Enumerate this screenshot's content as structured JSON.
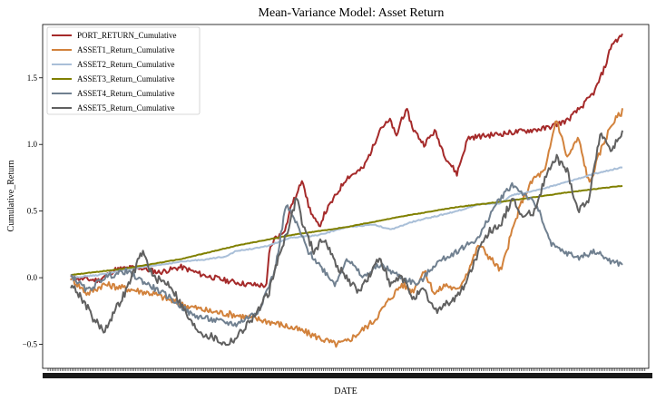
{
  "chart_data": {
    "type": "line",
    "title": "Mean-Variance Model: Asset Return",
    "xlabel": "DATE",
    "ylabel": "Cumulative_Return",
    "ylim": [
      -0.68,
      1.9
    ],
    "yticks": [
      -0.5,
      0.0,
      0.5,
      1.0,
      1.5
    ],
    "ytick_labels": [
      "−0.5",
      "0.0",
      "0.5",
      "1.0",
      "1.5"
    ],
    "grid": false,
    "legend_position": "top-left",
    "x_ticks_illegible": true,
    "series": [
      {
        "name": "PORT_RETURN_Cumulative",
        "color": "#A52A2A",
        "noise": 0.02,
        "points": [
          [
            0,
            0.0
          ],
          [
            0.05,
            -0.02
          ],
          [
            0.08,
            0.06
          ],
          [
            0.12,
            0.08
          ],
          [
            0.16,
            0.04
          ],
          [
            0.2,
            0.08
          ],
          [
            0.24,
            0.02
          ],
          [
            0.28,
            -0.02
          ],
          [
            0.32,
            -0.05
          ],
          [
            0.355,
            -0.06
          ],
          [
            0.36,
            0.2
          ],
          [
            0.37,
            0.3
          ],
          [
            0.38,
            0.32
          ],
          [
            0.39,
            0.38
          ],
          [
            0.4,
            0.55
          ],
          [
            0.41,
            0.62
          ],
          [
            0.42,
            0.75
          ],
          [
            0.43,
            0.55
          ],
          [
            0.44,
            0.45
          ],
          [
            0.45,
            0.38
          ],
          [
            0.46,
            0.48
          ],
          [
            0.5,
            0.75
          ],
          [
            0.53,
            0.82
          ],
          [
            0.55,
            1.0
          ],
          [
            0.56,
            1.12
          ],
          [
            0.58,
            1.18
          ],
          [
            0.59,
            1.05
          ],
          [
            0.6,
            1.2
          ],
          [
            0.61,
            1.25
          ],
          [
            0.62,
            1.12
          ],
          [
            0.64,
            1.0
          ],
          [
            0.66,
            1.1
          ],
          [
            0.68,
            0.9
          ],
          [
            0.7,
            0.78
          ],
          [
            0.72,
            1.05
          ],
          [
            0.74,
            1.06
          ],
          [
            0.78,
            1.08
          ],
          [
            0.82,
            1.1
          ],
          [
            0.86,
            1.12
          ],
          [
            0.9,
            1.18
          ],
          [
            0.93,
            1.3
          ],
          [
            0.95,
            1.4
          ],
          [
            0.97,
            1.6
          ],
          [
            0.98,
            1.75
          ],
          [
            1,
            1.82
          ]
        ]
      },
      {
        "name": "ASSET1_Return_Cumulative",
        "color": "#D2823C",
        "noise": 0.025,
        "points": [
          [
            0,
            0.0
          ],
          [
            0.03,
            -0.12
          ],
          [
            0.06,
            -0.05
          ],
          [
            0.1,
            -0.08
          ],
          [
            0.15,
            -0.12
          ],
          [
            0.2,
            -0.2
          ],
          [
            0.25,
            -0.25
          ],
          [
            0.3,
            -0.28
          ],
          [
            0.35,
            -0.32
          ],
          [
            0.38,
            -0.35
          ],
          [
            0.42,
            -0.4
          ],
          [
            0.45,
            -0.45
          ],
          [
            0.48,
            -0.5
          ],
          [
            0.5,
            -0.48
          ],
          [
            0.52,
            -0.42
          ],
          [
            0.55,
            -0.32
          ],
          [
            0.58,
            -0.15
          ],
          [
            0.6,
            -0.05
          ],
          [
            0.62,
            -0.1
          ],
          [
            0.64,
            0.05
          ],
          [
            0.66,
            -0.12
          ],
          [
            0.68,
            -0.05
          ],
          [
            0.7,
            -0.1
          ],
          [
            0.72,
            0.05
          ],
          [
            0.74,
            0.25
          ],
          [
            0.76,
            0.15
          ],
          [
            0.78,
            0.05
          ],
          [
            0.8,
            0.35
          ],
          [
            0.82,
            0.6
          ],
          [
            0.84,
            0.75
          ],
          [
            0.86,
            0.8
          ],
          [
            0.88,
            1.2
          ],
          [
            0.9,
            0.9
          ],
          [
            0.92,
            1.05
          ],
          [
            0.94,
            0.7
          ],
          [
            0.96,
            0.95
          ],
          [
            0.98,
            1.15
          ],
          [
            1,
            1.25
          ]
        ]
      },
      {
        "name": "ASSET2_Return_Cumulative",
        "color": "#A9BFD8",
        "noise": 0.004,
        "points": [
          [
            0,
            0.0
          ],
          [
            0.05,
            0.02
          ],
          [
            0.1,
            0.06
          ],
          [
            0.15,
            0.09
          ],
          [
            0.2,
            0.12
          ],
          [
            0.25,
            0.14
          ],
          [
            0.28,
            0.16
          ],
          [
            0.3,
            0.2
          ],
          [
            0.35,
            0.23
          ],
          [
            0.4,
            0.3
          ],
          [
            0.45,
            0.32
          ],
          [
            0.5,
            0.38
          ],
          [
            0.55,
            0.4
          ],
          [
            0.58,
            0.36
          ],
          [
            0.62,
            0.42
          ],
          [
            0.65,
            0.45
          ],
          [
            0.7,
            0.5
          ],
          [
            0.74,
            0.55
          ],
          [
            0.78,
            0.56
          ],
          [
            0.8,
            0.62
          ],
          [
            0.85,
            0.66
          ],
          [
            0.9,
            0.72
          ],
          [
            0.95,
            0.78
          ],
          [
            1,
            0.83
          ]
        ]
      },
      {
        "name": "ASSET3_Return_Cumulative",
        "color": "#808000",
        "noise": 0.002,
        "points": [
          [
            0,
            0.02
          ],
          [
            0.1,
            0.07
          ],
          [
            0.2,
            0.14
          ],
          [
            0.3,
            0.24
          ],
          [
            0.4,
            0.32
          ],
          [
            0.5,
            0.38
          ],
          [
            0.6,
            0.46
          ],
          [
            0.7,
            0.53
          ],
          [
            0.8,
            0.58
          ],
          [
            0.9,
            0.64
          ],
          [
            1,
            0.69
          ]
        ]
      },
      {
        "name": "ASSET4_Return_Cumulative",
        "color": "#708090",
        "noise": 0.022,
        "points": [
          [
            0,
            0.02
          ],
          [
            0.03,
            -0.1
          ],
          [
            0.06,
            0.0
          ],
          [
            0.1,
            0.05
          ],
          [
            0.14,
            -0.05
          ],
          [
            0.18,
            -0.15
          ],
          [
            0.22,
            -0.28
          ],
          [
            0.26,
            -0.32
          ],
          [
            0.3,
            -0.35
          ],
          [
            0.34,
            -0.25
          ],
          [
            0.37,
            0.05
          ],
          [
            0.39,
            0.55
          ],
          [
            0.41,
            0.4
          ],
          [
            0.43,
            0.2
          ],
          [
            0.45,
            0.1
          ],
          [
            0.48,
            -0.05
          ],
          [
            0.5,
            0.15
          ],
          [
            0.53,
            0.0
          ],
          [
            0.56,
            0.1
          ],
          [
            0.6,
            0.0
          ],
          [
            0.63,
            -0.05
          ],
          [
            0.66,
            0.1
          ],
          [
            0.7,
            0.2
          ],
          [
            0.74,
            0.3
          ],
          [
            0.77,
            0.55
          ],
          [
            0.8,
            0.7
          ],
          [
            0.83,
            0.6
          ],
          [
            0.85,
            0.5
          ],
          [
            0.87,
            0.25
          ],
          [
            0.89,
            0.2
          ],
          [
            0.92,
            0.15
          ],
          [
            0.95,
            0.2
          ],
          [
            0.98,
            0.12
          ],
          [
            1,
            0.1
          ]
        ]
      },
      {
        "name": "ASSET5_Return_Cumulative",
        "color": "#606060",
        "noise": 0.03,
        "points": [
          [
            0,
            -0.05
          ],
          [
            0.02,
            -0.15
          ],
          [
            0.04,
            -0.3
          ],
          [
            0.06,
            -0.4
          ],
          [
            0.08,
            -0.25
          ],
          [
            0.1,
            -0.1
          ],
          [
            0.12,
            0.1
          ],
          [
            0.13,
            0.2
          ],
          [
            0.15,
            0.0
          ],
          [
            0.18,
            -0.05
          ],
          [
            0.2,
            -0.2
          ],
          [
            0.22,
            -0.35
          ],
          [
            0.24,
            -0.42
          ],
          [
            0.26,
            -0.45
          ],
          [
            0.28,
            -0.5
          ],
          [
            0.3,
            -0.45
          ],
          [
            0.32,
            -0.35
          ],
          [
            0.34,
            -0.25
          ],
          [
            0.36,
            -0.1
          ],
          [
            0.38,
            0.2
          ],
          [
            0.4,
            0.45
          ],
          [
            0.41,
            0.62
          ],
          [
            0.42,
            0.4
          ],
          [
            0.44,
            0.2
          ],
          [
            0.46,
            0.3
          ],
          [
            0.48,
            0.1
          ],
          [
            0.5,
            0.0
          ],
          [
            0.52,
            -0.1
          ],
          [
            0.54,
            0.0
          ],
          [
            0.56,
            0.15
          ],
          [
            0.58,
            -0.05
          ],
          [
            0.6,
            0.0
          ],
          [
            0.62,
            -0.15
          ],
          [
            0.64,
            -0.1
          ],
          [
            0.66,
            -0.25
          ],
          [
            0.68,
            -0.2
          ],
          [
            0.7,
            -0.15
          ],
          [
            0.72,
            0.0
          ],
          [
            0.74,
            0.2
          ],
          [
            0.76,
            0.35
          ],
          [
            0.78,
            0.4
          ],
          [
            0.8,
            0.6
          ],
          [
            0.82,
            0.45
          ],
          [
            0.84,
            0.5
          ],
          [
            0.86,
            0.75
          ],
          [
            0.88,
            0.9
          ],
          [
            0.9,
            0.8
          ],
          [
            0.92,
            0.5
          ],
          [
            0.94,
            0.6
          ],
          [
            0.96,
            1.1
          ],
          [
            0.98,
            0.95
          ],
          [
            1,
            1.1
          ]
        ]
      }
    ]
  }
}
